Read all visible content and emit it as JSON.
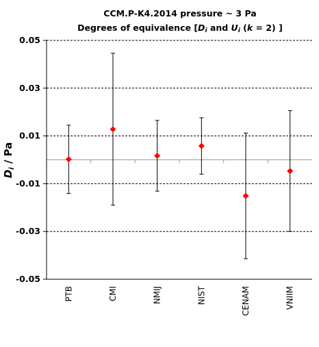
{
  "chart_data": {
    "type": "scatter",
    "title_line1": "CCM.P-K4.2014  pressure ~ 3 Pa",
    "title_line2_pre": "Degrees of equivalence [",
    "title_line2_d": "D",
    "title_line2_i1": "i",
    "title_line2_mid": " and ",
    "title_line2_u": "U",
    "title_line2_i2": "i",
    "title_line2_k_pre": " (",
    "title_line2_k": "k",
    "title_line2_post": " = 2) ]",
    "ylabel_d": "D",
    "ylabel_i": "i",
    "ylabel_rest": " / Pa",
    "ylim": [
      -0.05,
      0.05
    ],
    "yticks": [
      0.05,
      0.03,
      0.01,
      -0.01,
      -0.03,
      -0.05
    ],
    "ytick_labels": [
      "0.05",
      "0.03",
      "0.01",
      "-0.01",
      "-0.03",
      "-0.05"
    ],
    "categories": [
      "PTB",
      "CMI",
      "NMIJ",
      "NIST",
      "CENAM",
      "VNIIM"
    ],
    "values": [
      0.0002,
      0.0128,
      0.0017,
      0.0058,
      -0.0151,
      -0.0047
    ],
    "uncertainty": [
      0.0143,
      0.0318,
      0.0148,
      0.0118,
      0.0263,
      0.0253
    ],
    "grid": "horizontal dashed",
    "marker_color": "#ff0000"
  }
}
